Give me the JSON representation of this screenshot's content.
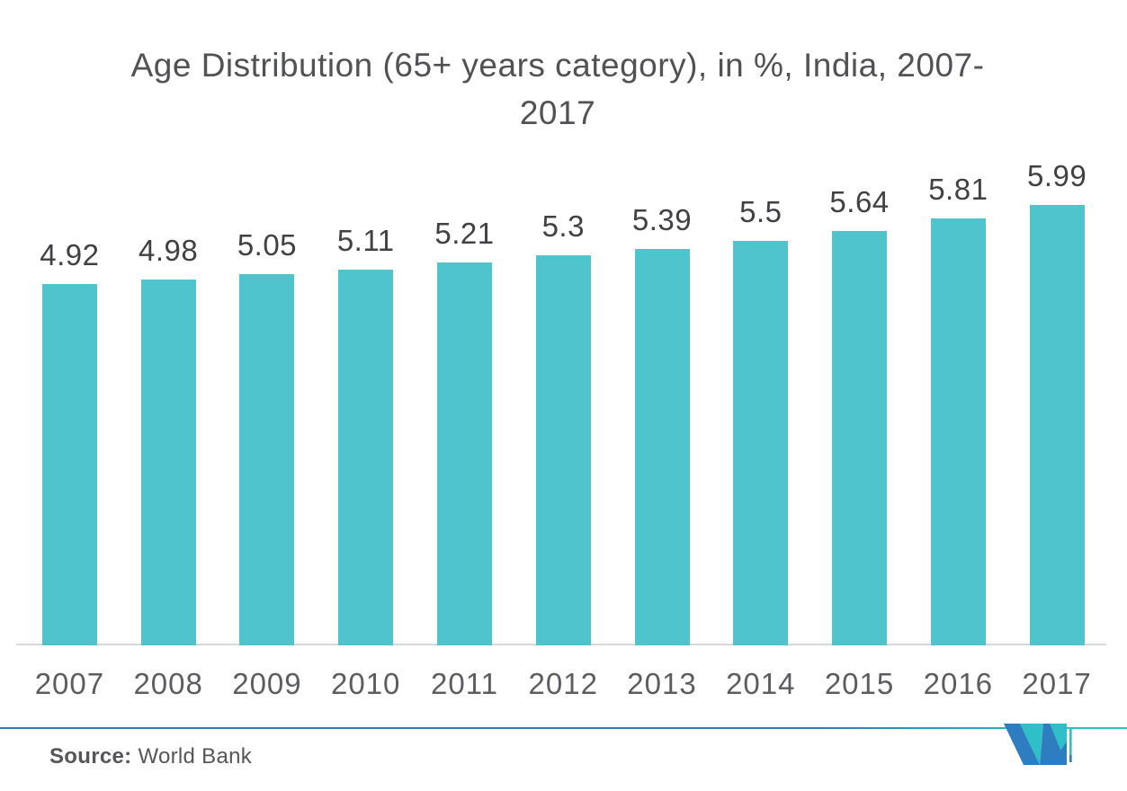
{
  "chart_data": {
    "type": "bar",
    "title": "Age Distribution (65+ years category), in %, India, 2007-2017",
    "title_lines": [
      "Age Distribution (65+ years category), in %, India, 2007-",
      "2017"
    ],
    "categories": [
      "2007",
      "2008",
      "2009",
      "2010",
      "2011",
      "2012",
      "2013",
      "2014",
      "2015",
      "2016",
      "2017"
    ],
    "values": [
      4.92,
      4.98,
      5.05,
      5.11,
      5.21,
      5.3,
      5.39,
      5.5,
      5.64,
      5.81,
      5.99
    ],
    "value_labels": [
      "4.92",
      "4.98",
      "5.05",
      "5.11",
      "5.21",
      "5.3",
      "5.39",
      "5.5",
      "5.64",
      "5.81",
      "5.99"
    ],
    "unit": "%",
    "xlabel": "",
    "ylabel": "",
    "ylim": [
      0,
      6.6
    ],
    "grid": false,
    "legend": false,
    "y_axis_shown": false,
    "bar_color": "#4FC4CC"
  },
  "footer": {
    "source_label": "Source:",
    "source_name": "World Bank",
    "logo_name": "mordor-intelligence-logo"
  },
  "colors": {
    "background": "#FFFFFF",
    "bar": "#4FC4CC",
    "title_text": "#515256",
    "value_label_text": "#404145",
    "axis_label_text": "#5B5D61",
    "baseline": "#D8D9DB",
    "source_text": "#55565A",
    "divider_blue": "#2C7CB6",
    "divider_teal": "#2BC3CB",
    "logo_blue": "#2E7DC1",
    "logo_teal": "#2FBFC7"
  }
}
